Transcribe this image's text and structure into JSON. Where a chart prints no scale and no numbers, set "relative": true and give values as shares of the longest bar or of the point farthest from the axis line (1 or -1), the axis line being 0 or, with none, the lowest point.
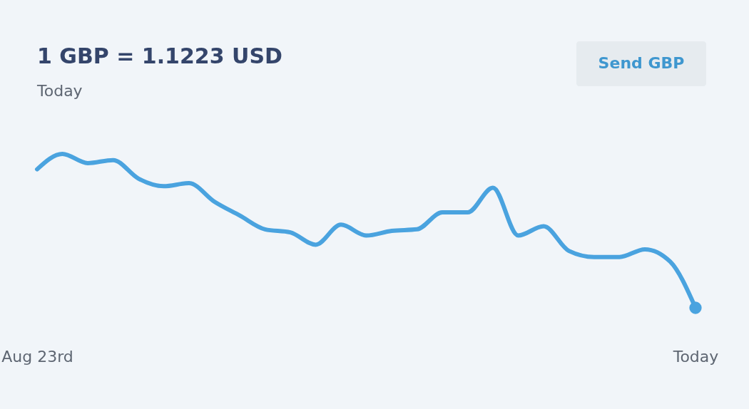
{
  "chart_data": {
    "type": "line",
    "title": "1 GBP = 1.1223 USD",
    "subtitle": "Today",
    "relative": true,
    "categories": [
      "Aug 23rd",
      null,
      null,
      null,
      null,
      null,
      null,
      null,
      null,
      null,
      null,
      null,
      null,
      null,
      null,
      null,
      null,
      null,
      null,
      null,
      null,
      null,
      null,
      null,
      null,
      null,
      "Today"
    ],
    "series": [
      {
        "color": "#4aa3df",
        "values": [
          0.9,
          1.0,
          0.94,
          0.96,
          0.84,
          0.79,
          0.81,
          0.69,
          0.6,
          0.51,
          0.49,
          0.41,
          0.54,
          0.47,
          0.5,
          0.51,
          0.62,
          0.62,
          0.78,
          0.47,
          0.53,
          0.37,
          0.33,
          0.33,
          0.38,
          0.3,
          0
        ]
      }
    ],
    "annotations": [
      "Send GBP"
    ],
    "line_style": "solid"
  }
}
